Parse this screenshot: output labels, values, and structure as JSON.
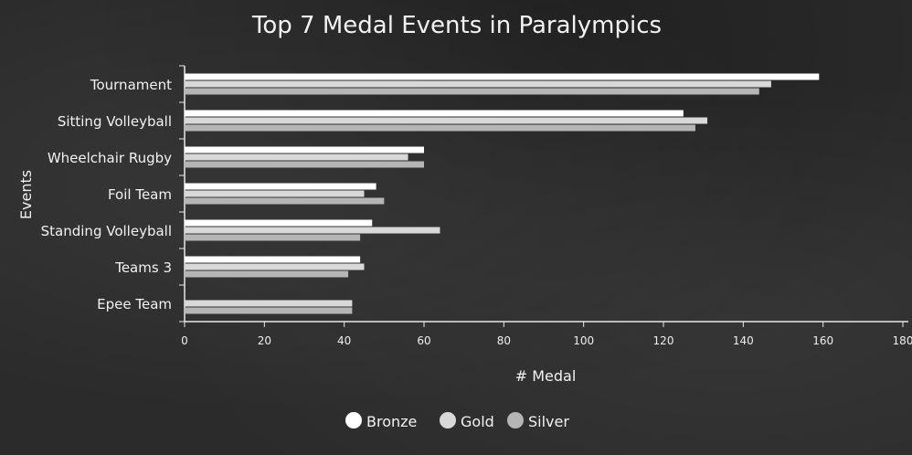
{
  "chart_data": {
    "type": "bar",
    "orientation": "horizontal",
    "title": "Top 7 Medal Events in Paralympics",
    "xlabel": "# Medal",
    "ylabel": "Events",
    "categories": [
      "Tournament",
      "Sitting Volleyball",
      "Wheelchair Rugby",
      "Foil Team",
      "Standing Volleyball",
      "Teams 3",
      "Epee Team"
    ],
    "series": [
      {
        "name": "Bronze",
        "color": "#ffffff",
        "values": [
          159,
          125,
          60,
          48,
          47,
          44,
          0
        ]
      },
      {
        "name": "Gold",
        "color": "#d8d8d8",
        "values": [
          147,
          131,
          56,
          45,
          64,
          45,
          42
        ]
      },
      {
        "name": "Silver",
        "color": "#b5b5b5",
        "values": [
          144,
          128,
          60,
          50,
          44,
          41,
          42
        ]
      }
    ],
    "xlim": [
      0,
      180
    ],
    "xticks": [
      "0",
      "20",
      "40",
      "60",
      "80",
      "100",
      "120",
      "140",
      "160",
      "180"
    ],
    "grid": false,
    "legend_position": "bottom"
  }
}
